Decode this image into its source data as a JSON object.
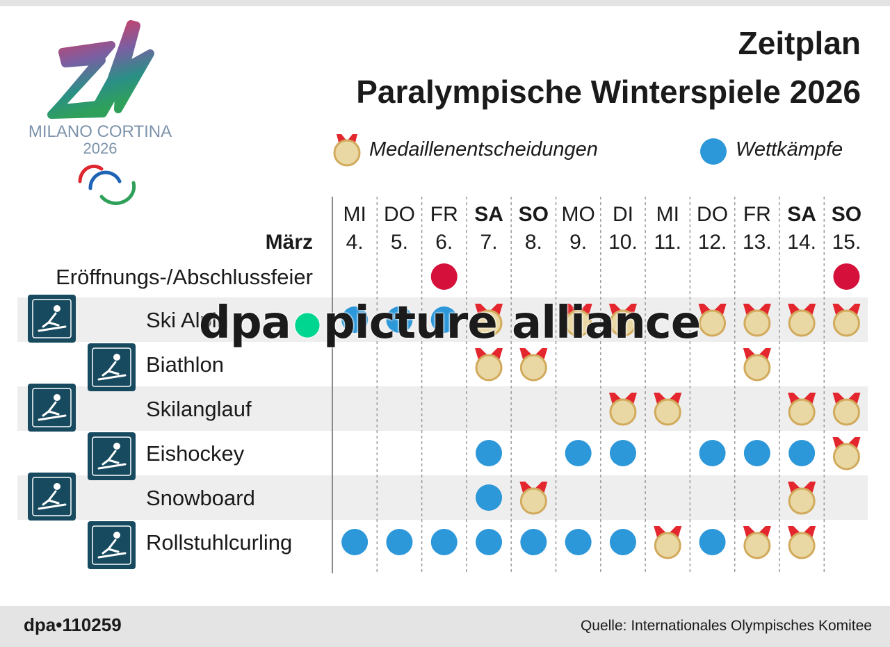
{
  "title_line1": "Zeitplan",
  "title_line2": "Paralympische Winterspiele 2026",
  "logo_text": "MILANO CORTINA",
  "logo_year": "2026",
  "legend": {
    "medal_label": "Medaillenentscheidungen",
    "competition_label": "Wettkämpfe"
  },
  "month_label": "März",
  "footer": {
    "code": "dpa•110259",
    "source": "Quelle: Internationales Olympisches Komitee"
  },
  "watermark": {
    "left": "dpa",
    "right": "picture alliance"
  },
  "colors": {
    "medal_gold": "#ead8a4",
    "medal_ring": "#d1aa5c",
    "ribbon_red": "#e4262e",
    "competition_blue": "#2c97d9",
    "ceremony_red": "#d5103a",
    "icon_bg": "#174a5f",
    "row_shade": "#eeeeee"
  },
  "chart_data": {
    "type": "table",
    "columns": [
      {
        "weekday": "MI",
        "date": "4.",
        "weekend": false
      },
      {
        "weekday": "DO",
        "date": "5.",
        "weekend": false
      },
      {
        "weekday": "FR",
        "date": "6.",
        "weekend": false
      },
      {
        "weekday": "SA",
        "date": "7.",
        "weekend": true
      },
      {
        "weekday": "SO",
        "date": "8.",
        "weekend": true
      },
      {
        "weekday": "MO",
        "date": "9.",
        "weekend": false
      },
      {
        "weekday": "DI",
        "date": "10.",
        "weekend": false
      },
      {
        "weekday": "MI",
        "date": "11.",
        "weekend": false
      },
      {
        "weekday": "DO",
        "date": "12.",
        "weekend": false
      },
      {
        "weekday": "FR",
        "date": "13.",
        "weekend": false
      },
      {
        "weekday": "SA",
        "date": "14.",
        "weekend": true
      },
      {
        "weekday": "SO",
        "date": "15.",
        "weekend": true
      }
    ],
    "rows": [
      {
        "label": "Eröffnungs-/Abschlussfeier",
        "icon": "",
        "shaded": false,
        "cells": [
          "",
          "",
          "ceremony",
          "",
          "",
          "",
          "",
          "",
          "",
          "",
          "",
          "ceremony"
        ]
      },
      {
        "label": "Ski Alpin",
        "icon": "ski-alpine-icon",
        "shaded": true,
        "cells": [
          "competition",
          "competition",
          "competition",
          "medal",
          "",
          "medal",
          "medal",
          "",
          "medal",
          "medal",
          "medal",
          "medal"
        ]
      },
      {
        "label": "Biathlon",
        "icon": "biathlon-icon",
        "shaded": false,
        "cells": [
          "",
          "",
          "",
          "medal",
          "medal",
          "",
          "",
          "",
          "",
          "medal",
          "",
          ""
        ]
      },
      {
        "label": "Skilanglauf",
        "icon": "cross-country-skiing-icon",
        "shaded": true,
        "cells": [
          "",
          "",
          "",
          "",
          "",
          "",
          "medal",
          "medal",
          "",
          "",
          "medal",
          "medal"
        ]
      },
      {
        "label": "Eishockey",
        "icon": "ice-hockey-icon",
        "shaded": false,
        "cells": [
          "",
          "",
          "",
          "competition",
          "",
          "competition",
          "competition",
          "",
          "competition",
          "competition",
          "competition",
          "medal"
        ]
      },
      {
        "label": "Snowboard",
        "icon": "snowboard-icon",
        "shaded": true,
        "cells": [
          "",
          "",
          "",
          "competition",
          "medal",
          "",
          "",
          "",
          "",
          "",
          "medal",
          ""
        ]
      },
      {
        "label": "Rollstuhlcurling",
        "icon": "wheelchair-curling-icon",
        "shaded": false,
        "cells": [
          "competition",
          "competition",
          "competition",
          "competition",
          "competition",
          "competition",
          "competition",
          "medal",
          "competition",
          "medal",
          "medal",
          ""
        ]
      }
    ]
  }
}
